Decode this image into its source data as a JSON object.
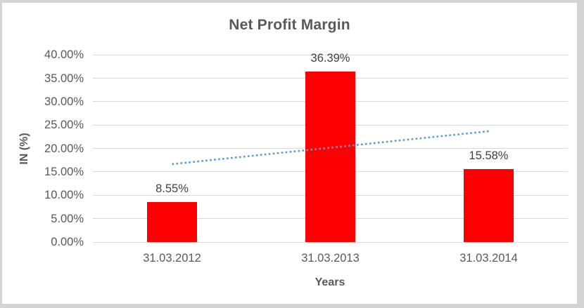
{
  "frame": {
    "border_color": "#d4d4d4",
    "background_color": "#ffffff"
  },
  "chart_data": {
    "type": "bar",
    "title": "Net Profit Margin",
    "xlabel": "Years",
    "ylabel": "IN (%)",
    "categories": [
      "31.03.2012",
      "31.03.2013",
      "31.03.2014"
    ],
    "values": [
      8.55,
      36.39,
      15.58
    ],
    "data_labels": [
      "8.55%",
      "36.39%",
      "15.58%"
    ],
    "ylim": [
      0,
      40
    ],
    "ytick_step": 5,
    "yticks": [
      {
        "value": 0,
        "label": "0.00%"
      },
      {
        "value": 5,
        "label": "5.00%"
      },
      {
        "value": 10,
        "label": "10.00%"
      },
      {
        "value": 15,
        "label": "15.00%"
      },
      {
        "value": 20,
        "label": "20.00%"
      },
      {
        "value": 25,
        "label": "25.00%"
      },
      {
        "value": 30,
        "label": "30.00%"
      },
      {
        "value": 35,
        "label": "35.00%"
      },
      {
        "value": 40,
        "label": "40.00%"
      }
    ],
    "grid": true,
    "legend": "none",
    "bar_color": "#ff0000",
    "gridline_color": "#d9d9d9",
    "title_color": "#595959",
    "axis_text_color": "#595959",
    "data_label_color": "#404040",
    "trendline": {
      "type": "linear",
      "style": "dotted",
      "color": "#5b9bd5",
      "start_value": 16.66,
      "end_value": 23.69
    }
  }
}
